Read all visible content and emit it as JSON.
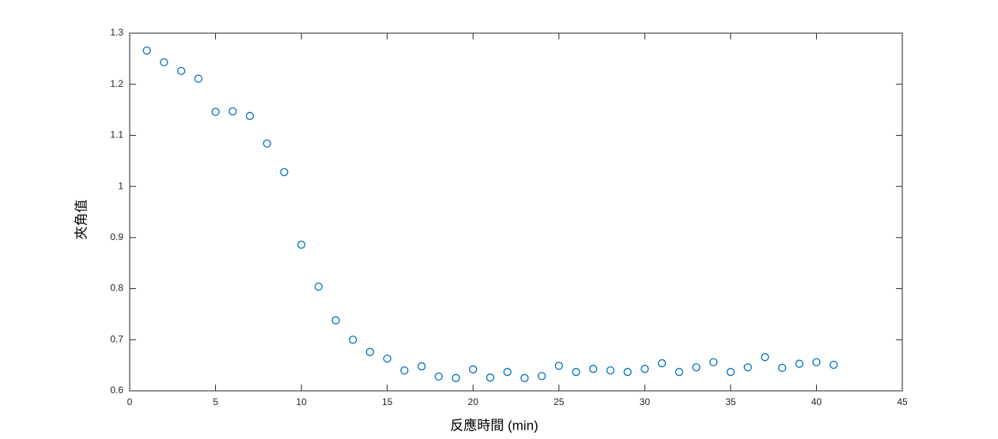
{
  "chart_data": {
    "type": "scatter",
    "x_label": "反應時間 (min)",
    "y_label": "夾角值",
    "series": [
      {
        "color": "#0072bd",
        "x": [
          1,
          2,
          3,
          4,
          5,
          6,
          7,
          8,
          9,
          10,
          11,
          12,
          13,
          14,
          15,
          16,
          17,
          18,
          19,
          20,
          21,
          22,
          23,
          24,
          25,
          26,
          27,
          28,
          29,
          30,
          31,
          32,
          33,
          34,
          35,
          36,
          37,
          38,
          39,
          40,
          41
        ],
        "values": [
          1.266,
          1.243,
          1.226,
          1.211,
          1.146,
          1.147,
          1.138,
          1.084,
          1.028,
          0.886,
          0.804,
          0.738,
          0.7,
          0.676,
          0.663,
          0.64,
          0.648,
          0.628,
          0.625,
          0.642,
          0.626,
          0.637,
          0.625,
          0.629,
          0.649,
          0.637,
          0.643,
          0.64,
          0.637,
          0.643,
          0.654,
          0.637,
          0.646,
          0.656,
          0.637,
          0.646,
          0.666,
          0.645,
          0.653,
          0.656,
          0.651
        ]
      }
    ],
    "xlim": [
      0,
      45
    ],
    "xticks": [
      0,
      5,
      10,
      15,
      20,
      25,
      30,
      35,
      40,
      45
    ],
    "ylim": [
      0.6,
      1.3
    ],
    "yticks": [
      0.6,
      0.7,
      0.8,
      0.9,
      1,
      1.1,
      1.2,
      1.3
    ],
    "grid": false,
    "box": true
  }
}
